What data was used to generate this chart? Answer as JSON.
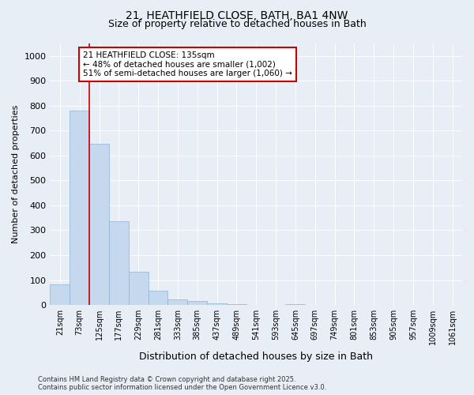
{
  "title_line1": "21, HEATHFIELD CLOSE, BATH, BA1 4NW",
  "title_line2": "Size of property relative to detached houses in Bath",
  "xlabel": "Distribution of detached houses by size in Bath",
  "ylabel": "Number of detached properties",
  "bar_color": "#c5d8ed",
  "bar_edge_color": "#8ab4d4",
  "categories": [
    "21sqm",
    "73sqm",
    "125sqm",
    "177sqm",
    "229sqm",
    "281sqm",
    "333sqm",
    "385sqm",
    "437sqm",
    "489sqm",
    "541sqm",
    "593sqm",
    "645sqm",
    "697sqm",
    "749sqm",
    "801sqm",
    "853sqm",
    "905sqm",
    "957sqm",
    "1009sqm",
    "1061sqm"
  ],
  "values": [
    83,
    780,
    648,
    335,
    133,
    57,
    22,
    15,
    8,
    2,
    0,
    0,
    2,
    0,
    0,
    0,
    0,
    0,
    0,
    0,
    0
  ],
  "ylim": [
    0,
    1050
  ],
  "yticks": [
    0,
    100,
    200,
    300,
    400,
    500,
    600,
    700,
    800,
    900,
    1000
  ],
  "vline_x": 1.5,
  "vline_color": "#cc0000",
  "annotation_text": "21 HEATHFIELD CLOSE: 135sqm\n← 48% of detached houses are smaller (1,002)\n51% of semi-detached houses are larger (1,060) →",
  "annotation_box_color": "#ffffff",
  "annotation_box_edge": "#cc0000",
  "bg_color": "#e8eef5",
  "plot_bg_color": "#e8eef5",
  "grid_color": "#ffffff",
  "footer_line1": "Contains HM Land Registry data © Crown copyright and database right 2025.",
  "footer_line2": "Contains public sector information licensed under the Open Government Licence v3.0.",
  "title_fontsize": 10,
  "subtitle_fontsize": 9,
  "axis_fontsize": 8,
  "tick_fontsize": 7,
  "bar_width": 1.0
}
